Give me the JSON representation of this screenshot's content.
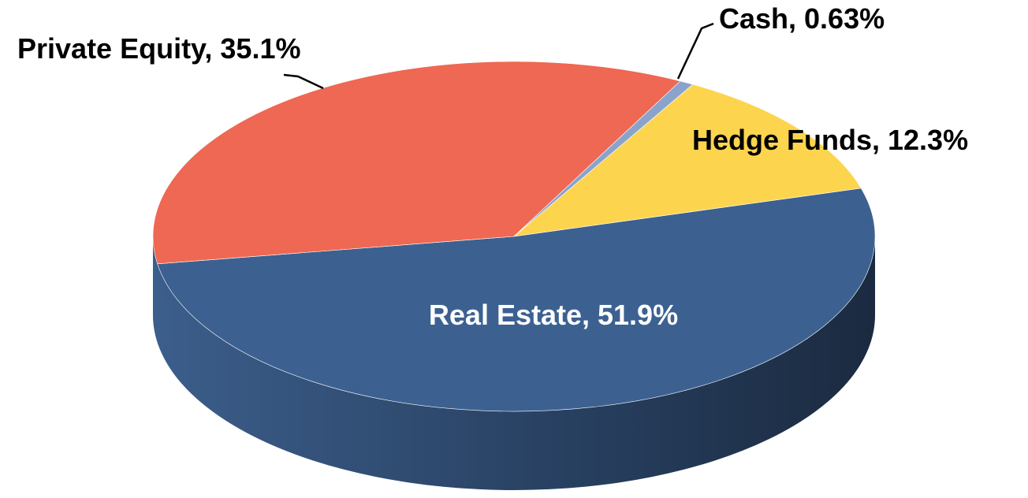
{
  "chart_data": {
    "type": "pie",
    "style": "3d",
    "slices": [
      {
        "label": "Real Estate",
        "value": 51.9,
        "label_text": "Real Estate, 51.9%",
        "color": "#3C6191"
      },
      {
        "label": "Private Equity",
        "value": 35.1,
        "label_text": "Private Equity, 35.1%",
        "color": "#EE6853"
      },
      {
        "label": "Cash",
        "value": 0.63,
        "label_text": "Cash, 0.63%",
        "color": "#8AA3CB"
      },
      {
        "label": "Hedge Funds",
        "value": 12.3,
        "label_text": "Hedge Funds, 12.3%",
        "color": "#FDD44E"
      }
    ],
    "label_color_inside": "#FFFFFF",
    "label_color_outside": "#000000",
    "legend": "none"
  }
}
